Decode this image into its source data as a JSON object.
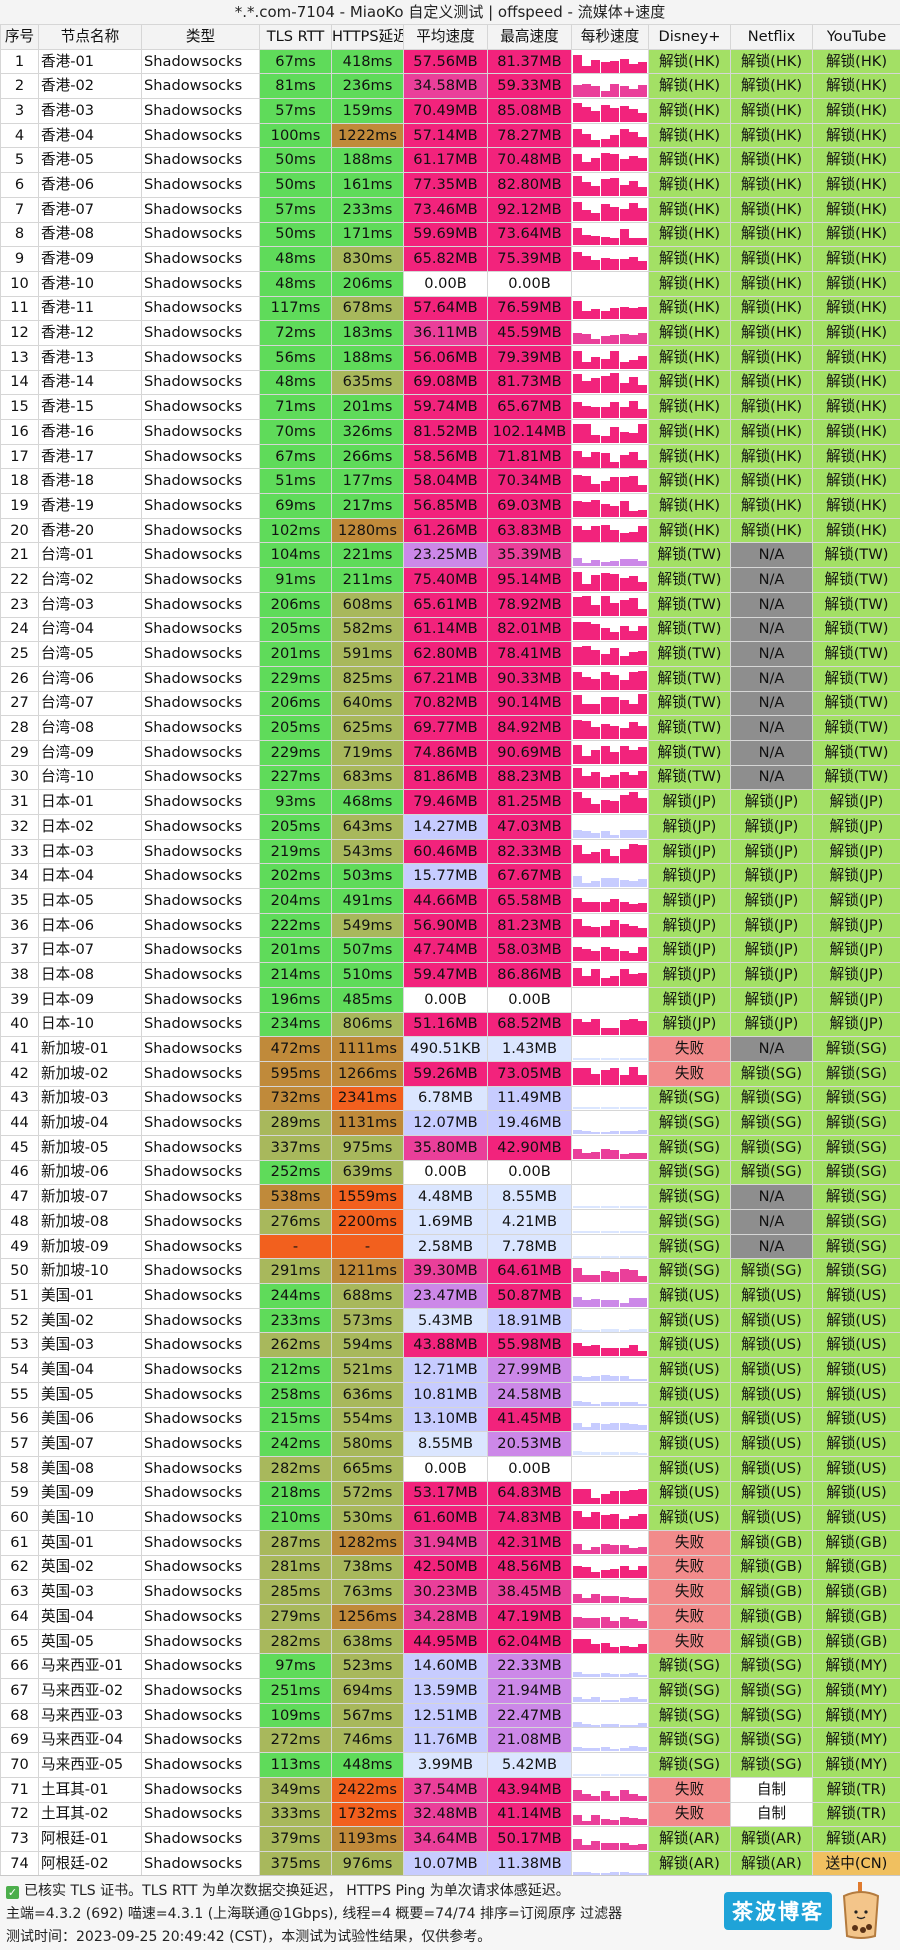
{
  "title": "*.*.com-7104 - MiaoKo 自定义测试 | offspeed - 流媒体+速度",
  "colors": {
    "green": "#5fdb5a",
    "olive": "#a8b85c",
    "brown": "#c08a3a",
    "orange": "#f2601e",
    "pink": "#f2237c",
    "magenta": "#ea3f9a",
    "violet": "#cc88e8",
    "lavender": "#c7ccff",
    "paleblue": "#dbe6ff",
    "white": "#ffffff",
    "unlock": "#a3e065",
    "fail": "#f28b8b",
    "na": "#8e8e8e",
    "self": "#ffffff",
    "partial": "#f0c060"
  },
  "chart_data": {
    "type": "table",
    "columns": [
      "序号",
      "节点名称",
      "类型",
      "TLS RTT",
      "HTTPS延迟",
      "平均速度",
      "最高速度",
      "每秒速度",
      "Disney+",
      "Netflix",
      "YouTube"
    ],
    "rows": [
      [
        1,
        "香港-01",
        "Shadowsocks",
        "67ms",
        "418ms",
        "57.56MB",
        "81.37MB",
        "",
        "解锁(HK)",
        "解锁(HK)",
        "解锁(HK)"
      ],
      [
        2,
        "香港-02",
        "Shadowsocks",
        "81ms",
        "236ms",
        "34.58MB",
        "59.33MB",
        "",
        "解锁(HK)",
        "解锁(HK)",
        "解锁(HK)"
      ],
      [
        3,
        "香港-03",
        "Shadowsocks",
        "57ms",
        "159ms",
        "70.49MB",
        "85.08MB",
        "",
        "解锁(HK)",
        "解锁(HK)",
        "解锁(HK)"
      ],
      [
        4,
        "香港-04",
        "Shadowsocks",
        "100ms",
        "1222ms",
        "57.14MB",
        "78.27MB",
        "",
        "解锁(HK)",
        "解锁(HK)",
        "解锁(HK)"
      ],
      [
        5,
        "香港-05",
        "Shadowsocks",
        "50ms",
        "188ms",
        "61.17MB",
        "70.48MB",
        "",
        "解锁(HK)",
        "解锁(HK)",
        "解锁(HK)"
      ],
      [
        6,
        "香港-06",
        "Shadowsocks",
        "50ms",
        "161ms",
        "77.35MB",
        "82.80MB",
        "",
        "解锁(HK)",
        "解锁(HK)",
        "解锁(HK)"
      ],
      [
        7,
        "香港-07",
        "Shadowsocks",
        "57ms",
        "233ms",
        "73.46MB",
        "92.12MB",
        "",
        "解锁(HK)",
        "解锁(HK)",
        "解锁(HK)"
      ],
      [
        8,
        "香港-08",
        "Shadowsocks",
        "50ms",
        "171ms",
        "59.69MB",
        "73.64MB",
        "",
        "解锁(HK)",
        "解锁(HK)",
        "解锁(HK)"
      ],
      [
        9,
        "香港-09",
        "Shadowsocks",
        "48ms",
        "830ms",
        "65.82MB",
        "75.39MB",
        "",
        "解锁(HK)",
        "解锁(HK)",
        "解锁(HK)"
      ],
      [
        10,
        "香港-10",
        "Shadowsocks",
        "48ms",
        "206ms",
        "0.00B",
        "0.00B",
        "",
        "解锁(HK)",
        "解锁(HK)",
        "解锁(HK)"
      ],
      [
        11,
        "香港-11",
        "Shadowsocks",
        "117ms",
        "678ms",
        "57.64MB",
        "76.59MB",
        "",
        "解锁(HK)",
        "解锁(HK)",
        "解锁(HK)"
      ],
      [
        12,
        "香港-12",
        "Shadowsocks",
        "72ms",
        "183ms",
        "36.11MB",
        "45.59MB",
        "",
        "解锁(HK)",
        "解锁(HK)",
        "解锁(HK)"
      ],
      [
        13,
        "香港-13",
        "Shadowsocks",
        "56ms",
        "188ms",
        "56.06MB",
        "79.39MB",
        "",
        "解锁(HK)",
        "解锁(HK)",
        "解锁(HK)"
      ],
      [
        14,
        "香港-14",
        "Shadowsocks",
        "48ms",
        "635ms",
        "69.08MB",
        "81.73MB",
        "",
        "解锁(HK)",
        "解锁(HK)",
        "解锁(HK)"
      ],
      [
        15,
        "香港-15",
        "Shadowsocks",
        "71ms",
        "201ms",
        "59.74MB",
        "65.67MB",
        "",
        "解锁(HK)",
        "解锁(HK)",
        "解锁(HK)"
      ],
      [
        16,
        "香港-16",
        "Shadowsocks",
        "70ms",
        "326ms",
        "81.52MB",
        "102.14MB",
        "",
        "解锁(HK)",
        "解锁(HK)",
        "解锁(HK)"
      ],
      [
        17,
        "香港-17",
        "Shadowsocks",
        "67ms",
        "266ms",
        "58.56MB",
        "71.81MB",
        "",
        "解锁(HK)",
        "解锁(HK)",
        "解锁(HK)"
      ],
      [
        18,
        "香港-18",
        "Shadowsocks",
        "51ms",
        "177ms",
        "58.04MB",
        "70.34MB",
        "",
        "解锁(HK)",
        "解锁(HK)",
        "解锁(HK)"
      ],
      [
        19,
        "香港-19",
        "Shadowsocks",
        "69ms",
        "217ms",
        "56.85MB",
        "69.03MB",
        "",
        "解锁(HK)",
        "解锁(HK)",
        "解锁(HK)"
      ],
      [
        20,
        "香港-20",
        "Shadowsocks",
        "102ms",
        "1280ms",
        "61.26MB",
        "63.83MB",
        "",
        "解锁(HK)",
        "解锁(HK)",
        "解锁(HK)"
      ],
      [
        21,
        "台湾-01",
        "Shadowsocks",
        "104ms",
        "221ms",
        "23.25MB",
        "35.39MB",
        "",
        "解锁(TW)",
        "N/A",
        "解锁(TW)"
      ],
      [
        22,
        "台湾-02",
        "Shadowsocks",
        "91ms",
        "211ms",
        "75.40MB",
        "95.14MB",
        "",
        "解锁(TW)",
        "N/A",
        "解锁(TW)"
      ],
      [
        23,
        "台湾-03",
        "Shadowsocks",
        "206ms",
        "608ms",
        "65.61MB",
        "78.92MB",
        "",
        "解锁(TW)",
        "N/A",
        "解锁(TW)"
      ],
      [
        24,
        "台湾-04",
        "Shadowsocks",
        "205ms",
        "582ms",
        "61.14MB",
        "82.01MB",
        "",
        "解锁(TW)",
        "N/A",
        "解锁(TW)"
      ],
      [
        25,
        "台湾-05",
        "Shadowsocks",
        "201ms",
        "591ms",
        "62.80MB",
        "78.41MB",
        "",
        "解锁(TW)",
        "N/A",
        "解锁(TW)"
      ],
      [
        26,
        "台湾-06",
        "Shadowsocks",
        "229ms",
        "825ms",
        "67.21MB",
        "90.33MB",
        "",
        "解锁(TW)",
        "N/A",
        "解锁(TW)"
      ],
      [
        27,
        "台湾-07",
        "Shadowsocks",
        "206ms",
        "640ms",
        "70.82MB",
        "90.14MB",
        "",
        "解锁(TW)",
        "N/A",
        "解锁(TW)"
      ],
      [
        28,
        "台湾-08",
        "Shadowsocks",
        "205ms",
        "625ms",
        "69.77MB",
        "84.92MB",
        "",
        "解锁(TW)",
        "N/A",
        "解锁(TW)"
      ],
      [
        29,
        "台湾-09",
        "Shadowsocks",
        "229ms",
        "719ms",
        "74.86MB",
        "90.69MB",
        "",
        "解锁(TW)",
        "N/A",
        "解锁(TW)"
      ],
      [
        30,
        "台湾-10",
        "Shadowsocks",
        "227ms",
        "683ms",
        "81.86MB",
        "88.23MB",
        "",
        "解锁(TW)",
        "N/A",
        "解锁(TW)"
      ],
      [
        31,
        "日本-01",
        "Shadowsocks",
        "93ms",
        "468ms",
        "79.46MB",
        "81.25MB",
        "",
        "解锁(JP)",
        "解锁(JP)",
        "解锁(JP)"
      ],
      [
        32,
        "日本-02",
        "Shadowsocks",
        "205ms",
        "643ms",
        "14.27MB",
        "47.03MB",
        "",
        "解锁(JP)",
        "解锁(JP)",
        "解锁(JP)"
      ],
      [
        33,
        "日本-03",
        "Shadowsocks",
        "219ms",
        "543ms",
        "60.46MB",
        "82.33MB",
        "",
        "解锁(JP)",
        "解锁(JP)",
        "解锁(JP)"
      ],
      [
        34,
        "日本-04",
        "Shadowsocks",
        "202ms",
        "503ms",
        "15.77MB",
        "67.67MB",
        "",
        "解锁(JP)",
        "解锁(JP)",
        "解锁(JP)"
      ],
      [
        35,
        "日本-05",
        "Shadowsocks",
        "204ms",
        "491ms",
        "44.66MB",
        "65.58MB",
        "",
        "解锁(JP)",
        "解锁(JP)",
        "解锁(JP)"
      ],
      [
        36,
        "日本-06",
        "Shadowsocks",
        "222ms",
        "549ms",
        "56.90MB",
        "81.23MB",
        "",
        "解锁(JP)",
        "解锁(JP)",
        "解锁(JP)"
      ],
      [
        37,
        "日本-07",
        "Shadowsocks",
        "201ms",
        "507ms",
        "47.74MB",
        "58.03MB",
        "",
        "解锁(JP)",
        "解锁(JP)",
        "解锁(JP)"
      ],
      [
        38,
        "日本-08",
        "Shadowsocks",
        "214ms",
        "510ms",
        "59.47MB",
        "86.86MB",
        "",
        "解锁(JP)",
        "解锁(JP)",
        "解锁(JP)"
      ],
      [
        39,
        "日本-09",
        "Shadowsocks",
        "196ms",
        "485ms",
        "0.00B",
        "0.00B",
        "",
        "解锁(JP)",
        "解锁(JP)",
        "解锁(JP)"
      ],
      [
        40,
        "日本-10",
        "Shadowsocks",
        "234ms",
        "806ms",
        "51.16MB",
        "68.52MB",
        "",
        "解锁(JP)",
        "解锁(JP)",
        "解锁(JP)"
      ],
      [
        41,
        "新加坡-01",
        "Shadowsocks",
        "472ms",
        "1111ms",
        "490.51KB",
        "1.43MB",
        "",
        "失败",
        "N/A",
        "解锁(SG)"
      ],
      [
        42,
        "新加坡-02",
        "Shadowsocks",
        "595ms",
        "1266ms",
        "59.26MB",
        "73.05MB",
        "",
        "失败",
        "解锁(SG)",
        "解锁(SG)"
      ],
      [
        43,
        "新加坡-03",
        "Shadowsocks",
        "732ms",
        "2341ms",
        "6.78MB",
        "11.49MB",
        "",
        "解锁(SG)",
        "解锁(SG)",
        "解锁(SG)"
      ],
      [
        44,
        "新加坡-04",
        "Shadowsocks",
        "289ms",
        "1131ms",
        "12.07MB",
        "19.46MB",
        "",
        "解锁(SG)",
        "解锁(SG)",
        "解锁(SG)"
      ],
      [
        45,
        "新加坡-05",
        "Shadowsocks",
        "337ms",
        "975ms",
        "35.80MB",
        "42.90MB",
        "",
        "解锁(SG)",
        "解锁(SG)",
        "解锁(SG)"
      ],
      [
        46,
        "新加坡-06",
        "Shadowsocks",
        "252ms",
        "639ms",
        "0.00B",
        "0.00B",
        "",
        "解锁(SG)",
        "解锁(SG)",
        "解锁(SG)"
      ],
      [
        47,
        "新加坡-07",
        "Shadowsocks",
        "538ms",
        "1559ms",
        "4.48MB",
        "8.55MB",
        "",
        "解锁(SG)",
        "N/A",
        "解锁(SG)"
      ],
      [
        48,
        "新加坡-08",
        "Shadowsocks",
        "276ms",
        "2200ms",
        "1.69MB",
        "4.21MB",
        "",
        "解锁(SG)",
        "N/A",
        "解锁(SG)"
      ],
      [
        49,
        "新加坡-09",
        "Shadowsocks",
        "-",
        "-",
        "2.58MB",
        "7.78MB",
        "",
        "解锁(SG)",
        "N/A",
        "解锁(SG)"
      ],
      [
        50,
        "新加坡-10",
        "Shadowsocks",
        "291ms",
        "1211ms",
        "39.30MB",
        "64.61MB",
        "",
        "解锁(SG)",
        "解锁(SG)",
        "解锁(SG)"
      ],
      [
        51,
        "美国-01",
        "Shadowsocks",
        "244ms",
        "688ms",
        "23.47MB",
        "50.87MB",
        "",
        "解锁(US)",
        "解锁(US)",
        "解锁(US)"
      ],
      [
        52,
        "美国-02",
        "Shadowsocks",
        "233ms",
        "573ms",
        "5.43MB",
        "18.91MB",
        "",
        "解锁(US)",
        "解锁(US)",
        "解锁(US)"
      ],
      [
        53,
        "美国-03",
        "Shadowsocks",
        "262ms",
        "594ms",
        "43.88MB",
        "55.98MB",
        "",
        "解锁(US)",
        "解锁(US)",
        "解锁(US)"
      ],
      [
        54,
        "美国-04",
        "Shadowsocks",
        "212ms",
        "521ms",
        "12.71MB",
        "27.99MB",
        "",
        "解锁(US)",
        "解锁(US)",
        "解锁(US)"
      ],
      [
        55,
        "美国-05",
        "Shadowsocks",
        "258ms",
        "636ms",
        "10.81MB",
        "24.58MB",
        "",
        "解锁(US)",
        "解锁(US)",
        "解锁(US)"
      ],
      [
        56,
        "美国-06",
        "Shadowsocks",
        "215ms",
        "554ms",
        "13.10MB",
        "41.45MB",
        "",
        "解锁(US)",
        "解锁(US)",
        "解锁(US)"
      ],
      [
        57,
        "美国-07",
        "Shadowsocks",
        "242ms",
        "580ms",
        "8.55MB",
        "20.53MB",
        "",
        "解锁(US)",
        "解锁(US)",
        "解锁(US)"
      ],
      [
        58,
        "美国-08",
        "Shadowsocks",
        "282ms",
        "665ms",
        "0.00B",
        "0.00B",
        "",
        "解锁(US)",
        "解锁(US)",
        "解锁(US)"
      ],
      [
        59,
        "美国-09",
        "Shadowsocks",
        "218ms",
        "572ms",
        "53.17MB",
        "64.83MB",
        "",
        "解锁(US)",
        "解锁(US)",
        "解锁(US)"
      ],
      [
        60,
        "美国-10",
        "Shadowsocks",
        "210ms",
        "530ms",
        "61.60MB",
        "74.83MB",
        "",
        "解锁(US)",
        "解锁(US)",
        "解锁(US)"
      ],
      [
        61,
        "英国-01",
        "Shadowsocks",
        "287ms",
        "1282ms",
        "31.94MB",
        "42.31MB",
        "",
        "失败",
        "解锁(GB)",
        "解锁(GB)"
      ],
      [
        62,
        "英国-02",
        "Shadowsocks",
        "281ms",
        "738ms",
        "42.50MB",
        "48.56MB",
        "",
        "失败",
        "解锁(GB)",
        "解锁(GB)"
      ],
      [
        63,
        "英国-03",
        "Shadowsocks",
        "285ms",
        "763ms",
        "30.23MB",
        "38.45MB",
        "",
        "失败",
        "解锁(GB)",
        "解锁(GB)"
      ],
      [
        64,
        "英国-04",
        "Shadowsocks",
        "279ms",
        "1256ms",
        "34.28MB",
        "47.19MB",
        "",
        "失败",
        "解锁(GB)",
        "解锁(GB)"
      ],
      [
        65,
        "英国-05",
        "Shadowsocks",
        "282ms",
        "638ms",
        "44.95MB",
        "62.04MB",
        "",
        "失败",
        "解锁(GB)",
        "解锁(GB)"
      ],
      [
        66,
        "马来西亚-01",
        "Shadowsocks",
        "97ms",
        "523ms",
        "14.60MB",
        "22.33MB",
        "",
        "解锁(SG)",
        "解锁(SG)",
        "解锁(MY)"
      ],
      [
        67,
        "马来西亚-02",
        "Shadowsocks",
        "251ms",
        "694ms",
        "13.59MB",
        "21.94MB",
        "",
        "解锁(SG)",
        "解锁(SG)",
        "解锁(MY)"
      ],
      [
        68,
        "马来西亚-03",
        "Shadowsocks",
        "109ms",
        "567ms",
        "12.51MB",
        "22.47MB",
        "",
        "解锁(SG)",
        "解锁(SG)",
        "解锁(MY)"
      ],
      [
        69,
        "马来西亚-04",
        "Shadowsocks",
        "272ms",
        "746ms",
        "11.76MB",
        "21.08MB",
        "",
        "解锁(SG)",
        "解锁(SG)",
        "解锁(MY)"
      ],
      [
        70,
        "马来西亚-05",
        "Shadowsocks",
        "113ms",
        "448ms",
        "3.99MB",
        "5.42MB",
        "",
        "解锁(SG)",
        "解锁(SG)",
        "解锁(MY)"
      ],
      [
        71,
        "土耳其-01",
        "Shadowsocks",
        "349ms",
        "2422ms",
        "37.54MB",
        "43.94MB",
        "",
        "失败",
        "自制",
        "解锁(TR)"
      ],
      [
        72,
        "土耳其-02",
        "Shadowsocks",
        "333ms",
        "1732ms",
        "32.48MB",
        "41.14MB",
        "",
        "失败",
        "自制",
        "解锁(TR)"
      ],
      [
        73,
        "阿根廷-01",
        "Shadowsocks",
        "379ms",
        "1193ms",
        "34.64MB",
        "50.17MB",
        "",
        "解锁(AR)",
        "解锁(AR)",
        "解锁(AR)"
      ],
      [
        74,
        "阿根廷-02",
        "Shadowsocks",
        "375ms",
        "976ms",
        "10.07MB",
        "11.38MB",
        "",
        "解锁(AR)",
        "解锁(AR)",
        "送中(CN)"
      ]
    ]
  },
  "footer": {
    "line1": "已核实 TLS 证书。TLS RTT 为单次数据交换延迟， HTTPS Ping 为单次请求体感延迟。",
    "line2": "主端=4.3.2 (692) 喵速=4.3.1 (上海联通@1Gbps), 线程=4 概要=74/74 排序=订阅原序 过滤器",
    "line3": "测试时间：2023-09-25 20:49:42 (CST)，本测试为试验性结果，仅供参考。",
    "brand": "茶波博客"
  }
}
